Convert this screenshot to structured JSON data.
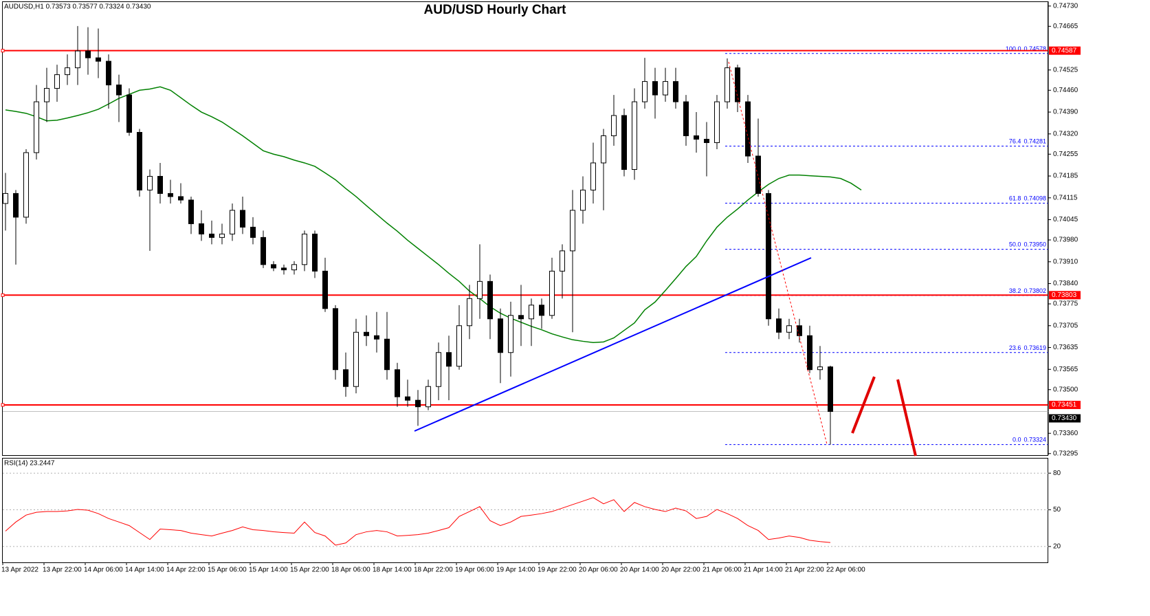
{
  "chart_data": [
    {
      "type": "candlestick",
      "title": "AUD/USD Hourly Chart",
      "header": "AUDUSD,H1  0.73573 0.73577 0.73324 0.73430",
      "categories": [
        "13 Apr 2022",
        null,
        null,
        null,
        "13 Apr 22:00",
        null,
        null,
        null,
        "14 Apr 06:00",
        null,
        null,
        null,
        "14 Apr 14:00",
        null,
        null,
        null,
        "14 Apr 22:00",
        null,
        null,
        null,
        "15 Apr 06:00",
        null,
        null,
        null,
        "15 Apr 14:00",
        null,
        null,
        null,
        "15 Apr 22:00",
        null,
        null,
        null,
        "18 Apr 06:00",
        null,
        null,
        null,
        "18 Apr 14:00",
        null,
        null,
        null,
        "18 Apr 22:00",
        null,
        null,
        null,
        "19 Apr 06:00",
        null,
        null,
        null,
        "19 Apr 14:00",
        null,
        null,
        null,
        "19 Apr 22:00",
        null,
        null,
        null,
        "20 Apr 06:00",
        null,
        null,
        null,
        "20 Apr 14:00",
        null,
        null,
        null,
        "20 Apr 22:00",
        null,
        null,
        null,
        "21 Apr 06:00",
        null,
        null,
        null,
        "21 Apr 14:00",
        null,
        null,
        null,
        "21 Apr 22:00",
        null,
        null,
        null,
        "22 Apr 06:00",
        null,
        null,
        null
      ],
      "ohlc": [
        [
          0.74097,
          0.74195,
          0.7401,
          0.74129
        ],
        [
          0.74129,
          0.7414,
          0.73901,
          0.74053
        ],
        [
          0.74053,
          0.74271,
          0.74032,
          0.7426
        ],
        [
          0.7426,
          0.74477,
          0.74238,
          0.74423
        ],
        [
          0.74423,
          0.74532,
          0.74358,
          0.74466
        ],
        [
          0.74466,
          0.74542,
          0.74423,
          0.7451
        ],
        [
          0.7451,
          0.74575,
          0.74477,
          0.74532
        ],
        [
          0.74532,
          0.74666,
          0.74477,
          0.74586
        ],
        [
          0.74586,
          0.74662,
          0.7451,
          0.74564
        ],
        [
          0.74564,
          0.74658,
          0.74499,
          0.74553
        ],
        [
          0.74553,
          0.74575,
          0.74401,
          0.74477
        ],
        [
          0.74477,
          0.7451,
          0.74358,
          0.74445
        ],
        [
          0.74445,
          0.74466,
          0.74314,
          0.74325
        ],
        [
          0.74325,
          0.74336,
          0.74119,
          0.7414
        ],
        [
          0.7414,
          0.74206,
          0.73945,
          0.74184
        ],
        [
          0.74184,
          0.74227,
          0.74097,
          0.74129
        ],
        [
          0.74129,
          0.74173,
          0.74097,
          0.74119
        ],
        [
          0.74119,
          0.74162,
          0.74097,
          0.74108
        ],
        [
          0.74108,
          0.74119,
          0.73999,
          0.74032
        ],
        [
          0.74032,
          0.74075,
          0.73977,
          0.73999
        ],
        [
          0.73999,
          0.74042,
          0.73966,
          0.73988
        ],
        [
          0.73988,
          0.74032,
          0.73966,
          0.73999
        ],
        [
          0.73999,
          0.74097,
          0.73977,
          0.74075
        ],
        [
          0.74075,
          0.74119,
          0.73999,
          0.74021
        ],
        [
          0.74021,
          0.74053,
          0.73966,
          0.73988
        ],
        [
          0.73988,
          0.7401,
          0.7389,
          0.73901
        ],
        [
          0.73901,
          0.73912,
          0.7388,
          0.7389
        ],
        [
          0.7389,
          0.73901,
          0.73869,
          0.73884
        ],
        [
          0.73884,
          0.73912,
          0.73869,
          0.73901
        ],
        [
          0.73901,
          0.7401,
          0.7388,
          0.73999
        ],
        [
          0.73999,
          0.7401,
          0.73858,
          0.7388
        ],
        [
          0.7388,
          0.73923,
          0.73749,
          0.7376
        ],
        [
          0.7376,
          0.73771,
          0.73532,
          0.73564
        ],
        [
          0.73564,
          0.73619,
          0.73477,
          0.7351
        ],
        [
          0.7351,
          0.73727,
          0.73488,
          0.73684
        ],
        [
          0.73684,
          0.73738,
          0.7364,
          0.73673
        ],
        [
          0.73673,
          0.73749,
          0.73619,
          0.73662
        ],
        [
          0.73662,
          0.73749,
          0.73532,
          0.73564
        ],
        [
          0.73564,
          0.73586,
          0.73445,
          0.73477
        ],
        [
          0.73477,
          0.73532,
          0.73445,
          0.73466
        ],
        [
          0.73466,
          0.73499,
          0.73384,
          0.73445
        ],
        [
          0.73445,
          0.73532,
          0.73434,
          0.7351
        ],
        [
          0.7351,
          0.73651,
          0.73466,
          0.73619
        ],
        [
          0.73619,
          0.73673,
          0.73466,
          0.73575
        ],
        [
          0.73575,
          0.73771,
          0.73564,
          0.73705
        ],
        [
          0.73705,
          0.73836,
          0.73662,
          0.73792
        ],
        [
          0.73792,
          0.73966,
          0.73727,
          0.73847
        ],
        [
          0.73847,
          0.73869,
          0.73662,
          0.73727
        ],
        [
          0.73727,
          0.7376,
          0.73521,
          0.73619
        ],
        [
          0.73619,
          0.73782,
          0.73542,
          0.73738
        ],
        [
          0.73738,
          0.73836,
          0.7364,
          0.73727
        ],
        [
          0.73727,
          0.73792,
          0.7364,
          0.73771
        ],
        [
          0.73771,
          0.73792,
          0.73695,
          0.73738
        ],
        [
          0.73738,
          0.73923,
          0.73727,
          0.7388
        ],
        [
          0.7388,
          0.73966,
          0.73792,
          0.73945
        ],
        [
          0.73945,
          0.7414,
          0.73684,
          0.74075
        ],
        [
          0.74075,
          0.74184,
          0.74032,
          0.7414
        ],
        [
          0.7414,
          0.74292,
          0.74097,
          0.74227
        ],
        [
          0.74227,
          0.74336,
          0.74075,
          0.74314
        ],
        [
          0.74314,
          0.74445,
          0.74282,
          0.74379
        ],
        [
          0.74379,
          0.74401,
          0.74184,
          0.74206
        ],
        [
          0.74206,
          0.74466,
          0.74173,
          0.74423
        ],
        [
          0.74423,
          0.74564,
          0.74401,
          0.74488
        ],
        [
          0.74488,
          0.74532,
          0.74369,
          0.74445
        ],
        [
          0.74445,
          0.74532,
          0.74423,
          0.74488
        ],
        [
          0.74488,
          0.74532,
          0.74401,
          0.74423
        ],
        [
          0.74423,
          0.74445,
          0.74282,
          0.74314
        ],
        [
          0.74314,
          0.7439,
          0.7426,
          0.74303
        ],
        [
          0.74303,
          0.74358,
          0.74184,
          0.74292
        ],
        [
          0.74292,
          0.74445,
          0.74271,
          0.74423
        ],
        [
          0.74423,
          0.74562,
          0.74401,
          0.74532
        ],
        [
          0.74532,
          0.74542,
          0.7439,
          0.74423
        ],
        [
          0.74423,
          0.74445,
          0.74227,
          0.74249
        ],
        [
          0.74249,
          0.74369,
          0.74119,
          0.74129
        ],
        [
          0.74129,
          0.7414,
          0.73705,
          0.73727
        ],
        [
          0.73727,
          0.7376,
          0.73662,
          0.73684
        ],
        [
          0.73684,
          0.73727,
          0.73662,
          0.73705
        ],
        [
          0.73705,
          0.73727,
          0.73651,
          0.73673
        ],
        [
          0.73673,
          0.73705,
          0.73553,
          0.73564
        ],
        [
          0.73564,
          0.7364,
          0.73532,
          0.73573
        ],
        [
          0.73573,
          0.73577,
          0.73324,
          0.7343
        ],
        null,
        null,
        null
      ],
      "series": [
        {
          "color": "#008000",
          "values": [
            0.74397,
            0.74392,
            0.74386,
            0.74375,
            0.74362,
            0.74364,
            0.74371,
            0.74379,
            0.74388,
            0.74399,
            0.74416,
            0.74434,
            0.74447,
            0.7446,
            0.74464,
            0.74471,
            0.7446,
            0.74436,
            0.74412,
            0.7439,
            0.74375,
            0.74358,
            0.74336,
            0.74314,
            0.7429,
            0.74266,
            0.74255,
            0.74247,
            0.74236,
            0.74227,
            0.74216,
            0.74195,
            0.74173,
            0.74145,
            0.74119,
            0.7409,
            0.74062,
            0.74034,
            0.74008,
            0.73979,
            0.73953,
            0.73927,
            0.73901,
            0.73873,
            0.73847,
            0.73816,
            0.73792,
            0.73766,
            0.73745,
            0.73729,
            0.73716,
            0.73703,
            0.73692,
            0.73679,
            0.73669,
            0.7366,
            0.73655,
            0.73651,
            0.73653,
            0.73666,
            0.7369,
            0.73714,
            0.73756,
            0.73781,
            0.73818,
            0.73856,
            0.73895,
            0.73927,
            0.73977,
            0.74021,
            0.74053,
            0.74079,
            0.74108,
            0.74134,
            0.74158,
            0.74177,
            0.74188,
            0.74188,
            0.74186,
            0.74184,
            0.74182,
            0.74177,
            0.74162,
            0.7414
          ]
        }
      ],
      "ylim": [
        0.7329,
        0.74745
      ],
      "yticks": [
        {
          "value": 0.7473,
          "label": "0.74730"
        },
        0.74665,
        0.74525,
        {
          "value": 0.7446,
          "label": "0.74460"
        },
        {
          "value": 0.7439,
          "label": "0.74390"
        },
        {
          "value": 0.7432,
          "label": "0.74320"
        },
        0.74255,
        0.74185,
        0.74115,
        0.74045,
        {
          "value": 0.7398,
          "label": "0.73980"
        },
        {
          "value": 0.7391,
          "label": "0.73910"
        },
        {
          "value": 0.7384,
          "label": "0.73840"
        },
        0.73775,
        0.73705,
        0.73635,
        0.73565,
        {
          "value": 0.735,
          "label": "0.73500"
        },
        {
          "value": 0.7336,
          "label": "0.73360"
        },
        0.73295
      ],
      "levels": {
        "color": "#ff0000",
        "values": [
          0.74587,
          0.73803,
          0.73451
        ]
      },
      "current": {
        "value": 0.7343,
        "label": "0.73430"
      },
      "fib": {
        "color": "#0000ff",
        "ratios": [
          "100.0",
          "76.4",
          "61.8",
          "50.0",
          "38.2",
          "23.6",
          "0.0"
        ],
        "values": [
          0.74578,
          0.74281,
          0.74098,
          0.7395,
          0.73802,
          0.73619,
          0.73324
        ],
        "value_labels": [
          "0.74578",
          "0.74281",
          "0.74098",
          "0.73950",
          "0.73802",
          "0.73619",
          "0.73324"
        ]
      }
    },
    {
      "type": "line",
      "title": "RSI(14) 23.2447",
      "color": "#ff0000",
      "values": [
        32.6,
        40.0,
        45.7,
        48.0,
        48.6,
        48.6,
        49.1,
        50.3,
        49.7,
        46.9,
        42.9,
        40.0,
        37.1,
        31.4,
        25.7,
        34.3,
        33.7,
        33.1,
        30.9,
        29.7,
        28.6,
        30.9,
        33.1,
        36.0,
        33.7,
        33.1,
        32.0,
        31.4,
        30.9,
        40.0,
        31.4,
        28.6,
        21.1,
        22.9,
        29.7,
        32.0,
        33.1,
        32.0,
        28.6,
        29.1,
        29.7,
        30.9,
        33.1,
        35.4,
        44.6,
        48.6,
        52.6,
        41.1,
        37.1,
        40.0,
        44.6,
        45.7,
        46.9,
        48.6,
        51.4,
        54.3,
        57.1,
        60.0,
        54.9,
        58.3,
        48.6,
        56.0,
        52.6,
        50.3,
        48.6,
        51.4,
        49.1,
        42.9,
        44.6,
        50.3,
        46.9,
        42.9,
        37.1,
        33.1,
        25.7,
        26.9,
        28.6,
        27.4,
        25.1,
        24.0,
        23.2447,
        null,
        null,
        null
      ],
      "ylim": [
        7,
        92.5
      ],
      "yticks": [
        80,
        50,
        20
      ]
    }
  ]
}
